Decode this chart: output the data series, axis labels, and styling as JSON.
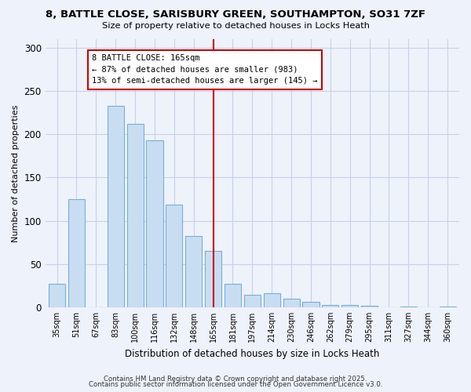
{
  "title": "8, BATTLE CLOSE, SARISBURY GREEN, SOUTHAMPTON, SO31 7ZF",
  "subtitle": "Size of property relative to detached houses in Locks Heath",
  "xlabel": "Distribution of detached houses by size in Locks Heath",
  "ylabel": "Number of detached properties",
  "bar_labels": [
    "35sqm",
    "51sqm",
    "67sqm",
    "83sqm",
    "100sqm",
    "116sqm",
    "132sqm",
    "148sqm",
    "165sqm",
    "181sqm",
    "197sqm",
    "214sqm",
    "230sqm",
    "246sqm",
    "262sqm",
    "279sqm",
    "295sqm",
    "311sqm",
    "327sqm",
    "344sqm",
    "360sqm"
  ],
  "bar_values": [
    27,
    125,
    0,
    233,
    212,
    193,
    119,
    82,
    65,
    27,
    14,
    16,
    10,
    6,
    3,
    3,
    2,
    0,
    1,
    0,
    1
  ],
  "bar_color": "#c9ddf2",
  "bar_edge_color": "#7aaed6",
  "annotation_title": "8 BATTLE CLOSE: 165sqm",
  "annotation_line1": "← 87% of detached houses are smaller (983)",
  "annotation_line2": "13% of semi-detached houses are larger (145) →",
  "vline_x_idx": 8,
  "vline_color": "#cc0000",
  "ylim": [
    0,
    310
  ],
  "yticks": [
    0,
    50,
    100,
    150,
    200,
    250,
    300
  ],
  "footer1": "Contains HM Land Registry data © Crown copyright and database right 2025.",
  "footer2": "Contains public sector information licensed under the Open Government Licence v3.0.",
  "bg_color": "#eef2fb",
  "grid_color": "#c8d0e8"
}
